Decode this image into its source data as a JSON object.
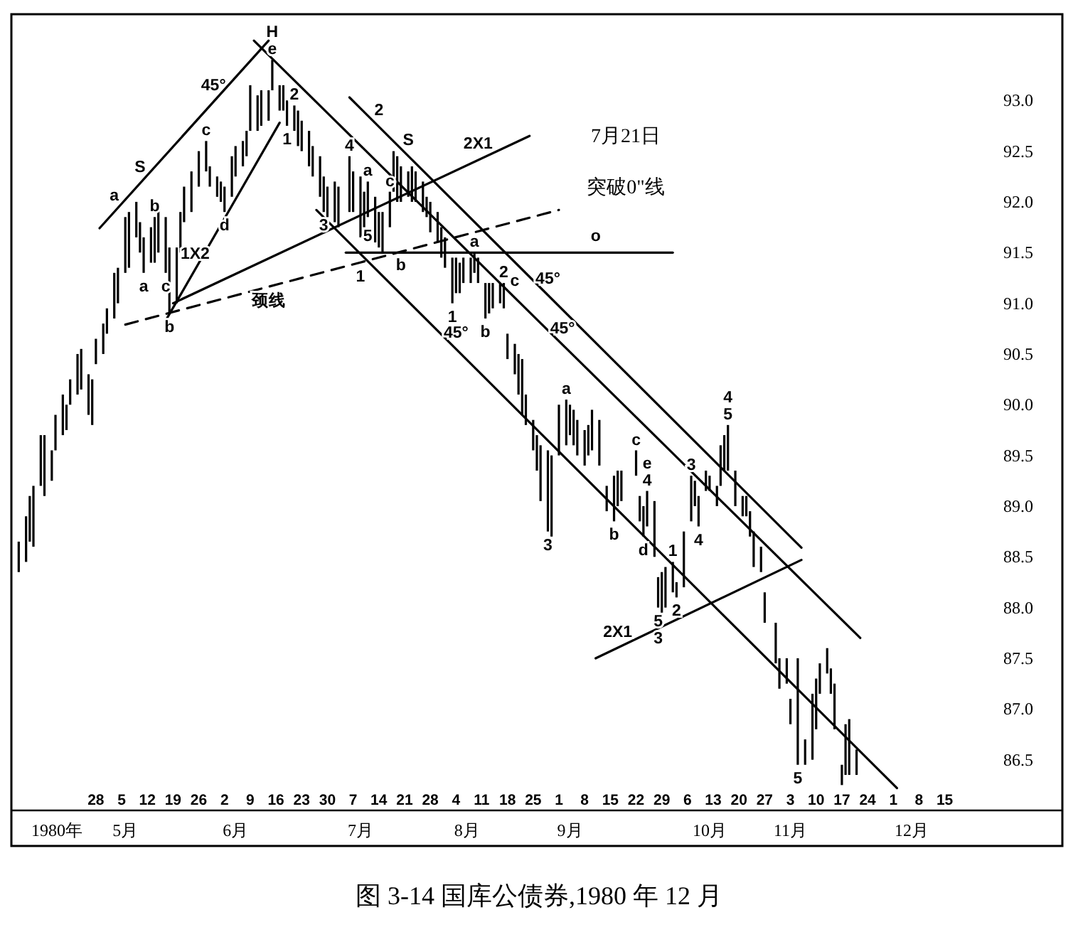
{
  "chart_data": {
    "type": "bar",
    "title": "图 3-14 国库公债券,1980 年 12 月",
    "xlabel": "1980年",
    "xlim": [
      "1980-04-05",
      "1981-01-16"
    ],
    "ylim": [
      86.0,
      93.85
    ],
    "xticks": [
      {
        "value": "1980-04-28",
        "label": "28"
      },
      {
        "value": "1980-05-05",
        "label": "5"
      },
      {
        "value": "1980-05-12",
        "label": "12"
      },
      {
        "value": "1980-05-19",
        "label": "19"
      },
      {
        "value": "1980-05-26",
        "label": "26"
      },
      {
        "value": "1980-06-02",
        "label": "2"
      },
      {
        "value": "1980-06-09",
        "label": "9"
      },
      {
        "value": "1980-06-16",
        "label": "16"
      },
      {
        "value": "1980-06-23",
        "label": "23"
      },
      {
        "value": "1980-06-30",
        "label": "30"
      },
      {
        "value": "1980-07-07",
        "label": "7"
      },
      {
        "value": "1980-07-14",
        "label": "14"
      },
      {
        "value": "1980-07-21",
        "label": "21"
      },
      {
        "value": "1980-07-28",
        "label": "28"
      },
      {
        "value": "1980-08-04",
        "label": "4"
      },
      {
        "value": "1980-08-11",
        "label": "11"
      },
      {
        "value": "1980-08-18",
        "label": "18"
      },
      {
        "value": "1980-08-25",
        "label": "25"
      },
      {
        "value": "1980-09-01",
        "label": "1"
      },
      {
        "value": "1980-09-08",
        "label": "8"
      },
      {
        "value": "1980-09-15",
        "label": "15"
      },
      {
        "value": "1980-09-22",
        "label": "22"
      },
      {
        "value": "1980-09-29",
        "label": "29"
      },
      {
        "value": "1980-10-06",
        "label": "6"
      },
      {
        "value": "1980-10-13",
        "label": "13"
      },
      {
        "value": "1980-10-20",
        "label": "20"
      },
      {
        "value": "1980-10-27",
        "label": "27"
      },
      {
        "value": "1980-11-03",
        "label": "3"
      },
      {
        "value": "1980-11-10",
        "label": "10"
      },
      {
        "value": "1980-11-17",
        "label": "17"
      },
      {
        "value": "1980-11-24",
        "label": "24"
      },
      {
        "value": "1980-12-01",
        "label": "1"
      },
      {
        "value": "1980-12-08",
        "label": "8"
      },
      {
        "value": "1980-12-15",
        "label": "15"
      }
    ],
    "yticks": [
      {
        "value": 93,
        "label": "93.0"
      },
      {
        "value": 92.5,
        "label": "92.5"
      },
      {
        "value": 92,
        "label": "92.0"
      },
      {
        "value": 91.5,
        "label": "91.5"
      },
      {
        "value": 91,
        "label": "91.0"
      },
      {
        "value": 90.5,
        "label": "90.5"
      },
      {
        "value": 90,
        "label": "90.0"
      },
      {
        "value": 89.5,
        "label": "89.5"
      },
      {
        "value": 89,
        "label": "89.0"
      },
      {
        "value": 88.5,
        "label": "88.5"
      },
      {
        "value": 88,
        "label": "88.0"
      },
      {
        "value": 87.5,
        "label": "87.5"
      },
      {
        "value": 87,
        "label": "87.0"
      },
      {
        "value": 86.5,
        "label": "86.5"
      }
    ],
    "series": [
      {
        "color": "#000000",
        "x": [
          "1980-04-07",
          "1980-04-09",
          "1980-04-10",
          "1980-04-11",
          "1980-04-13",
          "1980-04-14",
          "1980-04-16",
          "1980-04-17",
          "1980-04-19",
          "1980-04-20",
          "1980-04-21",
          "1980-04-23",
          "1980-04-24",
          "1980-04-26",
          "1980-04-27",
          "1980-04-28",
          "1980-04-30",
          "1980-05-01",
          "1980-05-03",
          "1980-05-04",
          "1980-05-06",
          "1980-05-07",
          "1980-05-09",
          "1980-05-10",
          "1980-05-11",
          "1980-05-13",
          "1980-05-14",
          "1980-05-15",
          "1980-05-17",
          "1980-05-18",
          "1980-05-20",
          "1980-05-21",
          "1980-05-22",
          "1980-05-24",
          "1980-05-26",
          "1980-05-28",
          "1980-05-29",
          "1980-05-31",
          "1980-06-01",
          "1980-06-02",
          "1980-06-04",
          "1980-06-05",
          "1980-06-07",
          "1980-06-08",
          "1980-06-09",
          "1980-06-11",
          "1980-06-12",
          "1980-06-14",
          "1980-06-15",
          "1980-06-17",
          "1980-06-18",
          "1980-06-19",
          "1980-06-21",
          "1980-06-22",
          "1980-06-23",
          "1980-06-25",
          "1980-06-26",
          "1980-06-28",
          "1980-06-29",
          "1980-06-30",
          "1980-07-02",
          "1980-07-03",
          "1980-07-06",
          "1980-07-07",
          "1980-07-09",
          "1980-07-10",
          "1980-07-11",
          "1980-07-13",
          "1980-07-14",
          "1980-07-15",
          "1980-07-17",
          "1980-07-18",
          "1980-07-19",
          "1980-07-20",
          "1980-07-22",
          "1980-07-23",
          "1980-07-24",
          "1980-07-26",
          "1980-07-27",
          "1980-07-28",
          "1980-07-30",
          "1980-07-31",
          "1980-08-01",
          "1980-08-03",
          "1980-08-04",
          "1980-08-05",
          "1980-08-06",
          "1980-08-08",
          "1980-08-09",
          "1980-08-10",
          "1980-08-12",
          "1980-08-13",
          "1980-08-14",
          "1980-08-16",
          "1980-08-17",
          "1980-08-18",
          "1980-08-20",
          "1980-08-21",
          "1980-08-22",
          "1980-08-23",
          "1980-08-25",
          "1980-08-26",
          "1980-08-27",
          "1980-08-29",
          "1980-08-30",
          "1980-09-01",
          "1980-09-03",
          "1980-09-04",
          "1980-09-05",
          "1980-09-06",
          "1980-09-08",
          "1980-09-09",
          "1980-09-10",
          "1980-09-12",
          "1980-09-14",
          "1980-09-16",
          "1980-09-17",
          "1980-09-18",
          "1980-09-22",
          "1980-09-23",
          "1980-09-24",
          "1980-09-25",
          "1980-09-27",
          "1980-09-28",
          "1980-09-29",
          "1980-09-30",
          "1980-10-02",
          "1980-10-03",
          "1980-10-05",
          "1980-10-07",
          "1980-10-08",
          "1980-10-09",
          "1980-10-11",
          "1980-10-12",
          "1980-10-14",
          "1980-10-15",
          "1980-10-16",
          "1980-10-17",
          "1980-10-19",
          "1980-10-21",
          "1980-10-22",
          "1980-10-23",
          "1980-10-24",
          "1980-10-26",
          "1980-10-27",
          "1980-10-30",
          "1980-10-31",
          "1980-11-02",
          "1980-11-03",
          "1980-11-05",
          "1980-11-07",
          "1980-11-09",
          "1980-11-10",
          "1980-11-11",
          "1980-11-13",
          "1980-11-14",
          "1980-11-15",
          "1980-11-17",
          "1980-11-18",
          "1980-11-19",
          "1980-11-21"
        ],
        "base": [
          88.35,
          88.45,
          88.65,
          88.6,
          89.2,
          89.1,
          89.25,
          89.55,
          89.7,
          89.75,
          90.0,
          90.1,
          90.15,
          89.9,
          89.8,
          90.4,
          90.5,
          90.7,
          90.85,
          91.0,
          91.3,
          91.35,
          91.65,
          91.5,
          91.3,
          91.4,
          91.4,
          91.5,
          91.3,
          90.9,
          91.0,
          91.5,
          91.8,
          91.9,
          92.15,
          92.3,
          92.15,
          92.05,
          92.0,
          91.9,
          92.05,
          92.25,
          92.35,
          92.45,
          92.7,
          92.7,
          92.75,
          92.8,
          93.1,
          92.9,
          92.9,
          92.75,
          92.7,
          92.55,
          92.5,
          92.35,
          92.25,
          92.05,
          91.9,
          91.85,
          91.8,
          91.75,
          91.9,
          91.9,
          91.65,
          91.75,
          91.85,
          91.6,
          91.55,
          91.5,
          91.75,
          92.1,
          92.0,
          92.0,
          92.05,
          92.0,
          92.0,
          91.9,
          91.85,
          91.7,
          91.6,
          91.45,
          91.35,
          91.0,
          91.1,
          91.1,
          91.2,
          91.2,
          91.3,
          91.2,
          90.85,
          90.9,
          90.95,
          91.0,
          90.95,
          90.45,
          90.3,
          90.1,
          89.9,
          89.8,
          89.55,
          89.35,
          89.05,
          88.75,
          88.7,
          89.5,
          89.6,
          89.7,
          89.6,
          89.5,
          89.4,
          89.5,
          89.55,
          89.4,
          88.95,
          88.85,
          89.0,
          89.05,
          89.3,
          88.85,
          88.7,
          88.8,
          88.5,
          88.0,
          87.95,
          88.0,
          88.15,
          88.1,
          88.2,
          88.85,
          89.0,
          88.8,
          89.15,
          89.15,
          89.0,
          89.2,
          89.35,
          89.35,
          89.0,
          88.9,
          88.9,
          88.7,
          88.4,
          88.35,
          87.85,
          87.45,
          87.2,
          87.25,
          86.85,
          86.45,
          86.45,
          86.5,
          86.8,
          87.15,
          87.35,
          87.15,
          86.8,
          86.25,
          86.35,
          86.35,
          86.35
        ],
        "values": [
          0.3,
          0.45,
          0.45,
          0.6,
          0.5,
          0.6,
          0.3,
          0.35,
          0.4,
          0.25,
          0.25,
          0.4,
          0.4,
          0.4,
          0.45,
          0.25,
          0.3,
          0.25,
          0.45,
          0.35,
          0.55,
          0.55,
          0.35,
          0.3,
          0.35,
          0.35,
          0.45,
          0.45,
          0.55,
          0.65,
          0.55,
          0.4,
          0.35,
          0.4,
          0.35,
          0.3,
          0.2,
          0.2,
          0.2,
          0.25,
          0.4,
          0.3,
          0.25,
          0.25,
          0.45,
          0.35,
          0.35,
          0.3,
          0.3,
          0.25,
          0.25,
          0.25,
          0.25,
          0.35,
          0.3,
          0.35,
          0.3,
          0.4,
          0.35,
          0.3,
          0.4,
          0.4,
          0.55,
          0.4,
          0.6,
          0.35,
          0.35,
          0.45,
          0.35,
          0.4,
          0.35,
          0.4,
          0.45,
          0.35,
          0.25,
          0.35,
          0.3,
          0.3,
          0.2,
          0.3,
          0.3,
          0.3,
          0.3,
          0.45,
          0.35,
          0.3,
          0.25,
          0.25,
          0.2,
          0.25,
          0.35,
          0.3,
          0.25,
          0.2,
          0.25,
          0.25,
          0.3,
          0.4,
          0.55,
          0.3,
          0.3,
          0.35,
          0.55,
          0.8,
          0.8,
          0.5,
          0.45,
          0.3,
          0.35,
          0.35,
          0.35,
          0.3,
          0.4,
          0.45,
          0.25,
          0.45,
          0.35,
          0.3,
          0.25,
          0.25,
          0.3,
          0.35,
          0.55,
          0.3,
          0.4,
          0.4,
          0.3,
          0.15,
          0.55,
          0.45,
          0.25,
          0.3,
          0.2,
          0.15,
          0.2,
          0.4,
          0.35,
          0.45,
          0.35,
          0.2,
          0.2,
          0.25,
          0.35,
          0.25,
          0.3,
          0.4,
          0.3,
          0.25,
          0.25,
          1.05,
          0.25,
          0.65,
          0.5,
          0.3,
          0.25,
          0.25,
          0.45,
          0.2,
          0.5,
          0.55,
          0.25
        ]
      },
      {
        "type": "line",
        "color": "#000000",
        "line_style": "solid",
        "x": [
          "1980-04-29",
          "1980-06-14"
        ],
        "values": [
          91.74,
          93.59
        ]
      },
      {
        "type": "line",
        "color": "#000000",
        "line_style": "solid",
        "x": [
          "1980-06-10",
          "1980-11-22"
        ],
        "values": [
          93.59,
          87.7
        ]
      },
      {
        "type": "line",
        "color": "#000000",
        "line_style": "solid",
        "x": [
          "1980-07-06",
          "1980-11-06"
        ],
        "values": [
          93.03,
          88.59
        ]
      },
      {
        "type": "line",
        "color": "#000000",
        "line_style": "solid",
        "x": [
          "1980-06-27",
          "1980-12-02"
        ],
        "values": [
          91.92,
          86.22
        ]
      },
      {
        "type": "line",
        "color": "#000000",
        "line_style": "solid",
        "x": [
          "1980-05-19",
          "1980-08-24"
        ],
        "values": [
          91.0,
          92.65
        ]
      },
      {
        "type": "line",
        "color": "#000000",
        "line_style": "solid",
        "x": [
          "1980-09-11",
          "1980-11-06"
        ],
        "values": [
          87.5,
          88.47
        ]
      },
      {
        "type": "line",
        "color": "#000000",
        "line_style": "solid",
        "x": [
          "1980-07-05",
          "1980-10-02"
        ],
        "values": [
          91.5,
          91.5
        ]
      },
      {
        "type": "line",
        "color": "#000000",
        "line_style": "dashed",
        "x": [
          "1980-05-06",
          "1980-09-01"
        ],
        "values": [
          90.79,
          91.92
        ]
      },
      {
        "type": "line",
        "color": "#000000",
        "line_style": "solid",
        "x": [
          "1980-05-17",
          "1980-06-17"
        ],
        "values": [
          90.83,
          92.78
        ]
      }
    ],
    "x2lim": [
      "1980-04-05",
      "1981-01-16"
    ],
    "x2ticks": [
      {
        "value": "1980-05-06",
        "label": "5月"
      },
      {
        "value": "1980-06-05",
        "label": "6月"
      },
      {
        "value": "1980-07-09",
        "label": "7月"
      },
      {
        "value": "1980-08-07",
        "label": "8月"
      },
      {
        "value": "1980-09-04",
        "label": "9月"
      },
      {
        "value": "1980-10-12",
        "label": "10月"
      },
      {
        "value": "1980-11-03",
        "label": "11月"
      },
      {
        "value": "1980-12-06",
        "label": "12月"
      }
    ],
    "annotations": [
      {
        "text": "e",
        "x": "1980-06-15",
        "y": 93.4
      },
      {
        "text": "H",
        "x": "1980-06-15",
        "y": 93.4
      },
      {
        "text": "a",
        "x": "1980-05-03",
        "y": 91.9
      },
      {
        "text": "S",
        "x": "1980-05-10",
        "y": 92.18
      },
      {
        "text": "45°",
        "x": "1980-05-30",
        "y": 92.99
      },
      {
        "text": "b",
        "x": "1980-05-14",
        "y": 91.85
      },
      {
        "text": "c",
        "x": "1980-05-28",
        "y": 92.6
      },
      {
        "text": "a",
        "x": "1980-05-11",
        "y": 91.3
      },
      {
        "text": "c",
        "x": "1980-05-17",
        "y": 91.3
      },
      {
        "text": "b",
        "x": "1980-05-18",
        "y": 90.9
      },
      {
        "text": "d",
        "x": "1980-06-02",
        "y": 91.9
      },
      {
        "text": "1X2",
        "x": "1980-05-25",
        "y": 91.33
      },
      {
        "text": "2",
        "x": "1980-06-21",
        "y": 92.95
      },
      {
        "text": "1",
        "x": "1980-06-19",
        "y": 92.75
      },
      {
        "text": "颈线",
        "x": "1980-06-14",
        "y": 91.16
      },
      {
        "text": "3",
        "x": "1980-06-29",
        "y": 91.9
      },
      {
        "text": "4",
        "x": "1980-07-06",
        "y": 92.45
      },
      {
        "text": "a",
        "x": "1980-07-11",
        "y": 92.2
      },
      {
        "text": "c",
        "x": "1980-07-17",
        "y": 92.1
      },
      {
        "text": "5",
        "x": "1980-07-11",
        "y": 91.5
      },
      {
        "text": "b",
        "x": "1980-07-20",
        "y": 91.51
      },
      {
        "text": "1",
        "x": "1980-07-09",
        "y": 91.4
      },
      {
        "text": "2",
        "x": "1980-07-14",
        "y": 92.74
      },
      {
        "text": "S",
        "x": "1980-07-22",
        "y": 92.45
      },
      {
        "text": "2X1",
        "x": "1980-08-10",
        "y": 92.41
      },
      "7月21日",
      "突破0\"线",
      {
        "text": "o",
        "x": "1980-09-11",
        "y": 91.5
      },
      {
        "text": "a",
        "x": "1980-08-09",
        "y": 91.5
      },
      {
        "text": "2",
        "x": "1980-08-17",
        "y": 91.2
      },
      {
        "text": "c",
        "x": "1980-08-20",
        "y": 91.06
      },
      {
        "text": "45°",
        "x": "1980-08-29",
        "y": 91.08
      },
      {
        "text": "45°",
        "x": "1980-09-02",
        "y": 90.59
      },
      {
        "text": "1",
        "x": "1980-08-03",
        "y": 91.0
      },
      {
        "text": "b",
        "x": "1980-08-12",
        "y": 90.85
      },
      {
        "text": "45°",
        "x": "1980-08-04",
        "y": 90.55
      },
      {
        "text": "3",
        "x": "1980-08-29",
        "y": 88.75
      },
      {
        "text": "a",
        "x": "1980-09-03",
        "y": 90.05
      },
      {
        "text": "c",
        "x": "1980-09-22",
        "y": 89.55
      },
      {
        "text": "b",
        "x": "1980-09-16",
        "y": 88.85
      },
      {
        "text": "d",
        "x": "1980-09-24",
        "y": 88.7
      },
      {
        "text": "4",
        "x": "1980-09-25",
        "y": 89.15
      },
      {
        "text": "e",
        "x": "1980-09-25",
        "y": 89.15
      },
      {
        "text": "1",
        "x": "1980-10-02",
        "y": 88.45
      },
      {
        "text": "5",
        "x": "1980-09-28",
        "y": 88.0
      },
      {
        "text": "3",
        "x": "1980-09-28",
        "y": 88.0
      },
      {
        "text": "2",
        "x": "1980-10-03",
        "y": 88.1
      },
      {
        "text": "2X1",
        "x": "1980-09-17",
        "y": 87.6
      },
      {
        "text": "3",
        "x": "1980-10-07",
        "y": 89.3
      },
      {
        "text": "4",
        "x": "1980-10-09",
        "y": 88.8
      },
      {
        "text": "5",
        "x": "1980-10-17",
        "y": 89.8
      },
      {
        "text": "4",
        "x": "1980-10-17",
        "y": 89.8
      },
      {
        "text": "5",
        "x": "1980-11-05",
        "y": 86.45
      }
    ]
  }
}
